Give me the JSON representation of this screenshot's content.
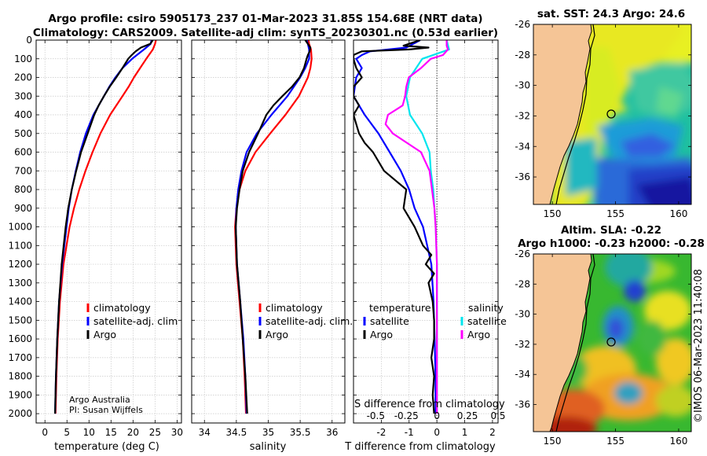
{
  "header": {
    "title_line1": "Argo profile: csiro 5905173_237 01-Mar-2023 31.85S 154.68E (NRT data)",
    "title_line2": "Climatology: CARS2009. Satellite-adj clim: synTS_20230301.nc (0.53d earlier)"
  },
  "colors": {
    "climatology": "#ff0000",
    "satellite_adj": "#0000ff",
    "argo": "#000000",
    "sat_salinity": "#00e5ee",
    "argo_salinity_diff": "#ff00ff"
  },
  "depth_ticks": [
    0,
    100,
    200,
    300,
    400,
    500,
    600,
    700,
    800,
    900,
    1000,
    1100,
    1200,
    1300,
    1400,
    1500,
    1600,
    1700,
    1800,
    1900,
    2000
  ],
  "chart_data": [
    {
      "type": "line",
      "id": "temperature",
      "xlabel": "temperature (deg C)",
      "ylabel": "",
      "xlim": [
        -2,
        31
      ],
      "ylim": [
        2050,
        0
      ],
      "xticks": [
        0,
        5,
        10,
        15,
        20,
        25,
        30
      ],
      "legend": [
        "climatology",
        "satellite-adj. clim",
        "Argo"
      ],
      "credit_line1": "Argo Australia",
      "credit_line2": "PI: Susan Wijffels",
      "series": [
        {
          "name": "climatology",
          "depth": [
            0,
            20,
            50,
            100,
            150,
            200,
            250,
            300,
            400,
            500,
            600,
            700,
            800,
            900,
            1000,
            1200,
            1400,
            1600,
            1800,
            2000
          ],
          "values": [
            25.2,
            25.0,
            24.5,
            23.0,
            21.6,
            20.2,
            19.0,
            17.6,
            14.8,
            12.6,
            10.8,
            9.2,
            7.8,
            6.6,
            5.6,
            4.2,
            3.4,
            2.9,
            2.6,
            2.4
          ]
        },
        {
          "name": "satellite-adj. clim",
          "depth": [
            0,
            20,
            50,
            100,
            150,
            200,
            250,
            300,
            400,
            500,
            600,
            700,
            800,
            900,
            1000,
            1200,
            1400,
            1600,
            1800,
            2000
          ],
          "values": [
            24.2,
            24.0,
            22.5,
            19.8,
            17.6,
            16.0,
            14.6,
            13.4,
            11.0,
            9.3,
            8.0,
            7.0,
            6.1,
            5.4,
            4.9,
            3.9,
            3.2,
            2.8,
            2.5,
            2.3
          ]
        },
        {
          "name": "Argo",
          "depth": [
            0,
            20,
            40,
            60,
            80,
            100,
            150,
            200,
            250,
            300,
            350,
            400,
            500,
            600,
            700,
            800,
            900,
            1000,
            1200,
            1400,
            1600,
            1800,
            2000
          ],
          "values": [
            24.5,
            23.9,
            21.8,
            20.6,
            19.7,
            18.9,
            17.6,
            16.2,
            14.7,
            13.4,
            12.2,
            11.2,
            9.7,
            8.2,
            7.1,
            6.1,
            5.3,
            4.7,
            3.8,
            3.2,
            2.8,
            2.5,
            2.3
          ]
        }
      ]
    },
    {
      "type": "line",
      "id": "salinity",
      "xlabel": "salinity",
      "xlim": [
        33.8,
        36.2
      ],
      "ylim": [
        2050,
        0
      ],
      "xticks": [
        34,
        34.5,
        35,
        35.5,
        36
      ],
      "legend": [
        "climatology",
        "satellite-adj. clim.",
        "Argo"
      ],
      "series": [
        {
          "name": "climatology",
          "depth": [
            0,
            20,
            50,
            100,
            150,
            200,
            300,
            400,
            500,
            600,
            700,
            800,
            900,
            1000,
            1200,
            1400,
            1600,
            1800,
            2000
          ],
          "values": [
            35.63,
            35.64,
            35.67,
            35.68,
            35.66,
            35.62,
            35.48,
            35.27,
            35.03,
            34.8,
            34.64,
            34.55,
            34.5,
            34.48,
            34.5,
            34.55,
            34.6,
            34.63,
            34.65
          ]
        },
        {
          "name": "satellite-adj. clim.",
          "depth": [
            0,
            20,
            50,
            100,
            150,
            200,
            300,
            400,
            500,
            600,
            700,
            800,
            900,
            1000,
            1200,
            1400,
            1600,
            1800,
            2000
          ],
          "values": [
            35.6,
            35.62,
            35.64,
            35.64,
            35.58,
            35.5,
            35.3,
            35.05,
            34.82,
            34.66,
            34.58,
            34.53,
            34.5,
            34.49,
            34.51,
            34.56,
            34.61,
            34.64,
            34.66
          ]
        },
        {
          "name": "Argo",
          "depth": [
            0,
            20,
            40,
            60,
            80,
            100,
            150,
            200,
            250,
            300,
            350,
            400,
            500,
            600,
            700,
            800,
            900,
            1000,
            1200,
            1400,
            1600,
            1800,
            2000
          ],
          "values": [
            35.58,
            35.62,
            35.66,
            35.65,
            35.62,
            35.6,
            35.56,
            35.49,
            35.37,
            35.22,
            35.08,
            34.97,
            34.84,
            34.7,
            34.6,
            34.55,
            34.51,
            34.49,
            34.51,
            34.56,
            34.6,
            34.64,
            34.67
          ]
        }
      ]
    },
    {
      "type": "line",
      "id": "difference",
      "xlabel": "T difference from climatology",
      "top_xlabel": "S difference from climatology",
      "xlim": [
        -3,
        2.2
      ],
      "ylim": [
        2050,
        0
      ],
      "xticks": [
        -2,
        -1,
        0,
        1,
        2
      ],
      "top_xtick_labels": [
        "-0.5",
        "-0.25",
        "0",
        "0.25",
        "0.5"
      ],
      "legend_temperature_title": "temperature",
      "legend_salinity_title": "salinity",
      "legend_temperature": [
        "satellite",
        "Argo"
      ],
      "legend_salinity": [
        "satellite",
        "Argo"
      ],
      "series": [
        {
          "name": "T satellite",
          "depth": [
            0,
            40,
            60,
            80,
            100,
            150,
            200,
            300,
            400,
            500,
            600,
            700,
            800,
            900,
            1000,
            1100,
            1200,
            1400,
            1600,
            1800,
            2000
          ],
          "values": [
            -0.6,
            -1.1,
            -2.4,
            -2.7,
            -2.9,
            -2.7,
            -2.9,
            -3.0,
            -2.6,
            -2.1,
            -1.7,
            -1.3,
            -1.0,
            -0.8,
            -0.5,
            -0.35,
            -0.2,
            -0.12,
            -0.08,
            -0.05,
            -0.05
          ]
        },
        {
          "name": "T Argo",
          "depth": [
            0,
            30,
            40,
            50,
            60,
            80,
            100,
            150,
            200,
            250,
            300,
            350,
            400,
            450,
            500,
            550,
            600,
            700,
            800,
            900,
            1000,
            1100,
            1150,
            1200,
            1250,
            1300,
            1400,
            1500,
            1600,
            1700,
            1800,
            1900,
            2000
          ],
          "values": [
            -0.6,
            -1.2,
            -0.3,
            -1.0,
            -2.7,
            -3.0,
            -3.0,
            -2.9,
            -2.7,
            -3.0,
            -3.0,
            -2.8,
            -3.0,
            -2.9,
            -2.8,
            -2.6,
            -2.3,
            -1.9,
            -1.1,
            -1.2,
            -0.8,
            -0.5,
            -0.2,
            -0.4,
            -0.1,
            -0.3,
            -0.15,
            -0.1,
            -0.1,
            -0.2,
            -0.1,
            -0.15,
            -0.1
          ]
        },
        {
          "name": "S satellite",
          "depth": [
            0,
            50,
            100,
            200,
            300,
            400,
            500,
            600,
            700,
            800,
            900,
            1000,
            1200,
            1400,
            1600,
            1800,
            2000
          ],
          "values": [
            0.08,
            0.1,
            -0.12,
            -0.22,
            -0.25,
            -0.22,
            -0.12,
            -0.06,
            -0.05,
            -0.03,
            -0.02,
            -0.01,
            0.0,
            0.0,
            0.0,
            0.0,
            0.0
          ]
        },
        {
          "name": "S Argo",
          "depth": [
            0,
            30,
            50,
            80,
            100,
            150,
            200,
            250,
            300,
            350,
            400,
            450,
            500,
            600,
            700,
            800,
            900,
            1000,
            1200,
            1400,
            1600,
            1800,
            2000
          ],
          "values": [
            0.08,
            0.08,
            0.09,
            0.05,
            -0.05,
            -0.13,
            -0.23,
            -0.25,
            -0.26,
            -0.28,
            -0.4,
            -0.42,
            -0.36,
            -0.13,
            -0.06,
            -0.04,
            -0.02,
            -0.01,
            0.0,
            0.0,
            0.0,
            0.0,
            0.0
          ]
        }
      ]
    },
    {
      "type": "heatmap",
      "id": "sst_map",
      "title": "sat. SST: 24.3 Argo: 24.6",
      "xlim": [
        148.5,
        161
      ],
      "ylim": [
        -37.8,
        -26
      ],
      "xticks": [
        150,
        155,
        160
      ],
      "yticks": [
        -26,
        -28,
        -30,
        -32,
        -34,
        -36
      ],
      "argo_position": [
        154.68,
        -31.85
      ]
    },
    {
      "type": "heatmap",
      "id": "sla_map",
      "title_line1": "Altim. SLA: -0.22",
      "title_line2": "Argo h1000: -0.23 h2000: -0.28",
      "xlim": [
        148.5,
        161
      ],
      "ylim": [
        -37.8,
        -26
      ],
      "xticks": [
        150,
        155,
        160
      ],
      "yticks": [
        -26,
        -28,
        -30,
        -32,
        -34,
        -36
      ],
      "argo_position": [
        154.68,
        -31.85
      ]
    }
  ],
  "footer": {
    "watermark": "©IMOS 06-Mar-2023 11:40:08"
  }
}
